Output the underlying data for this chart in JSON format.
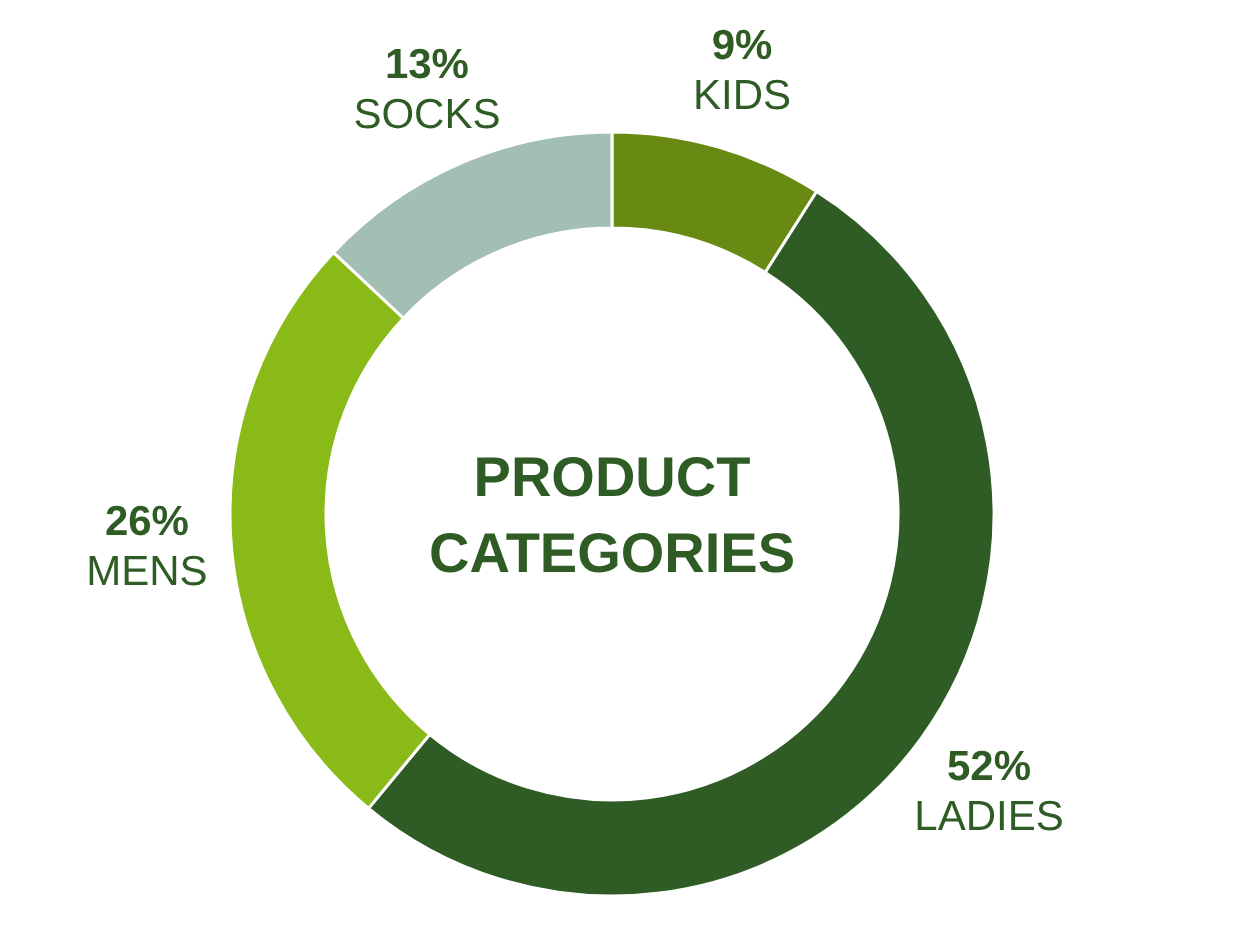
{
  "chart_data": {
    "type": "donut",
    "title": "PRODUCT CATEGORIES",
    "categories": [
      "KIDS",
      "LADIES",
      "MENS",
      "SOCKS"
    ],
    "values": [
      9,
      52,
      26,
      13
    ],
    "value_labels": [
      "9%",
      "52%",
      "26%",
      "13%"
    ],
    "colors": [
      "#688a13",
      "#2f5b24",
      "#8aba17",
      "#a3bfb4"
    ]
  }
}
